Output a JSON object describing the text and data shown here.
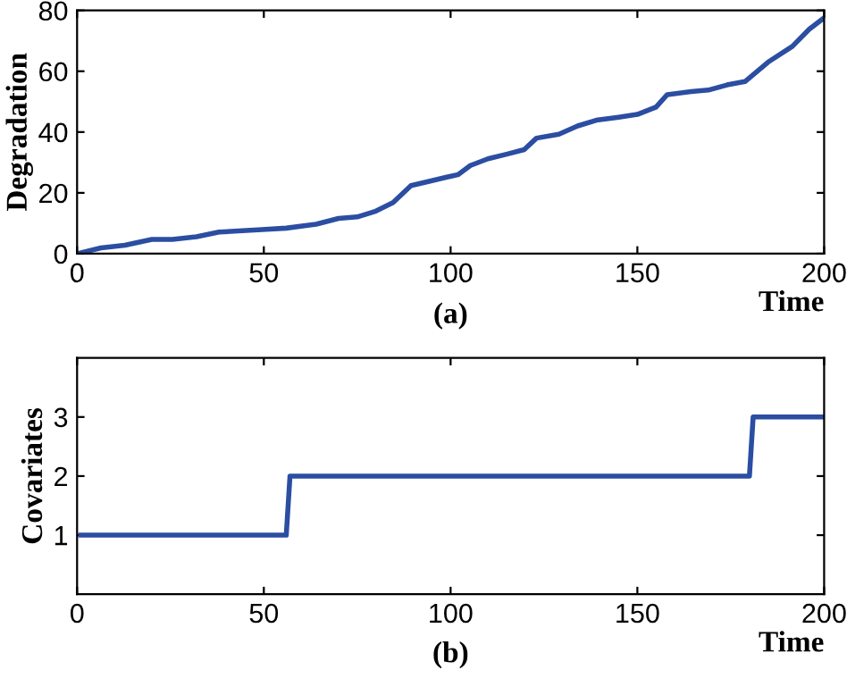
{
  "chart_data": [
    {
      "type": "line",
      "ylabel": "Degradation",
      "xlabel": "Time",
      "annotations": [
        "(a)"
      ],
      "xlim": [
        0,
        200
      ],
      "xticks": [
        0,
        50,
        100,
        150,
        200
      ],
      "ylim": [
        0,
        80
      ],
      "yticks": [
        0,
        20,
        40,
        60,
        80
      ],
      "grid": false,
      "legend": false,
      "line_style": "solid",
      "marker": "none",
      "series": [
        {
          "color": "#2b4ea2",
          "x": [
            0,
            6.4,
            12.8,
            20,
            25.5,
            32,
            38,
            49.5,
            56,
            64,
            70,
            75,
            80,
            84.6,
            89.4,
            94,
            99,
            102,
            105.3,
            110,
            115,
            119.7,
            123,
            129,
            134,
            139,
            145,
            150,
            155,
            158,
            164.4,
            169,
            174,
            178.8,
            185,
            191.5,
            196,
            200
          ],
          "values": [
            0,
            1.9,
            2.8,
            4.7,
            4.7,
            5.6,
            7.1,
            7.9,
            8.4,
            9.7,
            11.6,
            12.1,
            14,
            16.8,
            22.4,
            23.7,
            25.2,
            26,
            29,
            31.2,
            32.7,
            34.2,
            38,
            39.3,
            42,
            43.9,
            44.9,
            45.8,
            48.2,
            52.3,
            53.3,
            53.8,
            55.5,
            56.6,
            63,
            68.2,
            73.8,
            77.6
          ]
        }
      ]
    },
    {
      "type": "line",
      "ylabel": "Covariates",
      "xlabel": "Time",
      "annotations": [
        "(b)"
      ],
      "xlim": [
        0,
        200
      ],
      "xticks": [
        0,
        50,
        100,
        150,
        200
      ],
      "ylim": [
        0,
        4
      ],
      "yticks": [
        1,
        2,
        3
      ],
      "grid": false,
      "legend": false,
      "line_style": "solid",
      "marker": "none",
      "series": [
        {
          "color": "#2b4ea2",
          "x": [
            1,
            56,
            57,
            180,
            181,
            200
          ],
          "values": [
            1,
            1,
            2,
            2,
            3,
            3
          ]
        }
      ]
    }
  ]
}
